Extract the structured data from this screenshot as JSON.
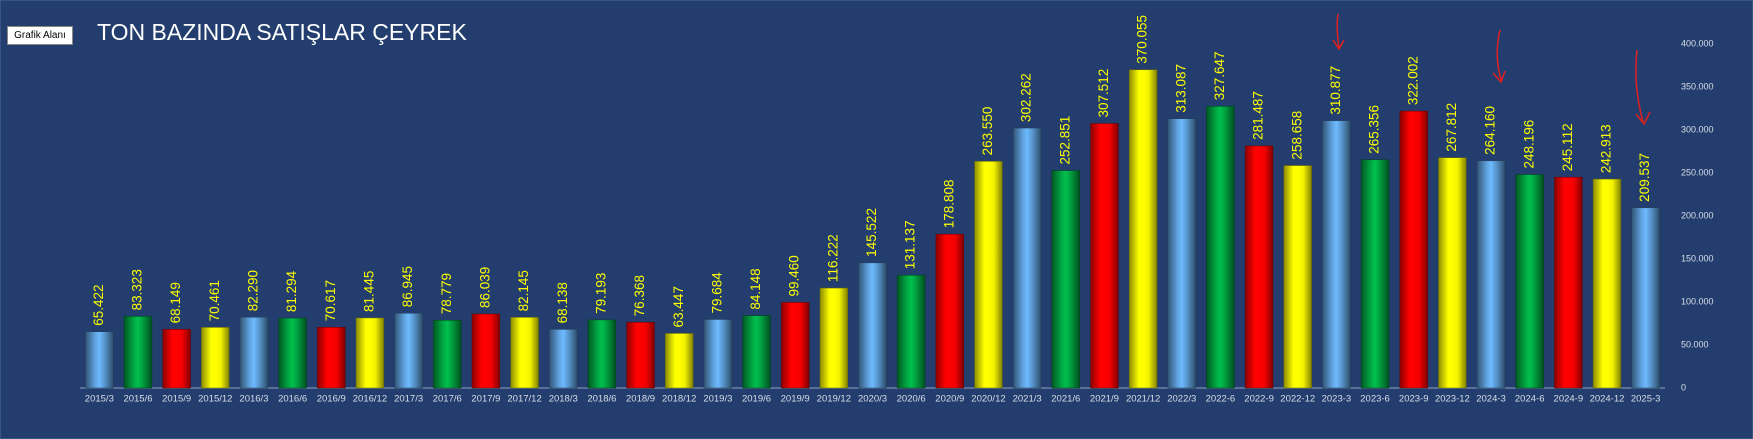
{
  "button": {
    "label": "Grafik Alanı"
  },
  "chart_data": {
    "type": "bar",
    "title": "TON BAZINDA SATIŞLAR ÇEYREK",
    "categories": [
      "2015/3",
      "2015/6",
      "2015/9",
      "2015/12",
      "2016/3",
      "2016/6",
      "2016/9",
      "2016/12",
      "2017/3",
      "2017/6",
      "2017/9",
      "2017/12",
      "2018/3",
      "2018/6",
      "2018/9",
      "2018/12",
      "2019/3",
      "2019/6",
      "2019/9",
      "2019/12",
      "2020/3",
      "2020/6",
      "2020/9",
      "2020/12",
      "2021/3",
      "2021/6",
      "2021/9",
      "2021/12",
      "2022/3",
      "2022-6",
      "2022-9",
      "2022-12",
      "2023-3",
      "2023-6",
      "2023-9",
      "2023-12",
      "2024-3",
      "2024-6",
      "2024-9",
      "2024-12",
      "2025-3"
    ],
    "values": [
      65422,
      83323,
      68149,
      70461,
      82290,
      81294,
      70617,
      81445,
      86945,
      78779,
      86039,
      82145,
      68138,
      79193,
      76368,
      63447,
      79684,
      84148,
      99460,
      116222,
      145522,
      131137,
      178808,
      263550,
      302262,
      252851,
      307512,
      370055,
      313087,
      327647,
      281487,
      258658,
      310877,
      265356,
      322002,
      267812,
      264160,
      248196,
      245112,
      242913,
      209537
    ],
    "value_labels": [
      "65.422",
      "83.323",
      "68.149",
      "70.461",
      "82.290",
      "81.294",
      "70.617",
      "81.445",
      "86.945",
      "78.779",
      "86.039",
      "82.145",
      "68.138",
      "79.193",
      "76.368",
      "63.447",
      "79.684",
      "84.148",
      "99.460",
      "116.222",
      "145.522",
      "131.137",
      "178.808",
      "263.550",
      "302.262",
      "252.851",
      "307.512",
      "370.055",
      "313.087",
      "327.647",
      "281.487",
      "258.658",
      "310.877",
      "265.356",
      "322.002",
      "267.812",
      "264.160",
      "248.196",
      "245.112",
      "242.913",
      "209.537"
    ],
    "colors": [
      "#5b9bd5",
      "#00a040",
      "#ff0000",
      "#ffff00",
      "#5b9bd5",
      "#00a040",
      "#ff0000",
      "#ffff00",
      "#5b9bd5",
      "#00a040",
      "#ff0000",
      "#ffff00",
      "#5b9bd5",
      "#00a040",
      "#ff0000",
      "#ffff00",
      "#5b9bd5",
      "#00a040",
      "#ff0000",
      "#ffff00",
      "#5b9bd5",
      "#00a040",
      "#ff0000",
      "#ffff00",
      "#5b9bd5",
      "#00a040",
      "#ff0000",
      "#ffff00",
      "#5b9bd5",
      "#00a040",
      "#ff0000",
      "#ffff00",
      "#5b9bd5",
      "#00a040",
      "#ff0000",
      "#ffff00",
      "#5b9bd5",
      "#00a040",
      "#ff0000",
      "#ffff00",
      "#5b9bd5"
    ],
    "ylim": [
      0,
      400000
    ],
    "yticks": [
      0,
      {
        "value": 50000,
        "label": "50.000"
      },
      {
        "value": 100000,
        "label": "100.000"
      },
      {
        "value": 150000,
        "label": "150.000"
      },
      {
        "value": 200000,
        "label": "200.000"
      },
      {
        "value": 250000,
        "label": "250.000"
      },
      {
        "value": 300000,
        "label": "300.000"
      },
      {
        "value": 350000,
        "label": "350.000"
      },
      {
        "value": 400000,
        "label": "400.000"
      }
    ],
    "grid": false
  }
}
